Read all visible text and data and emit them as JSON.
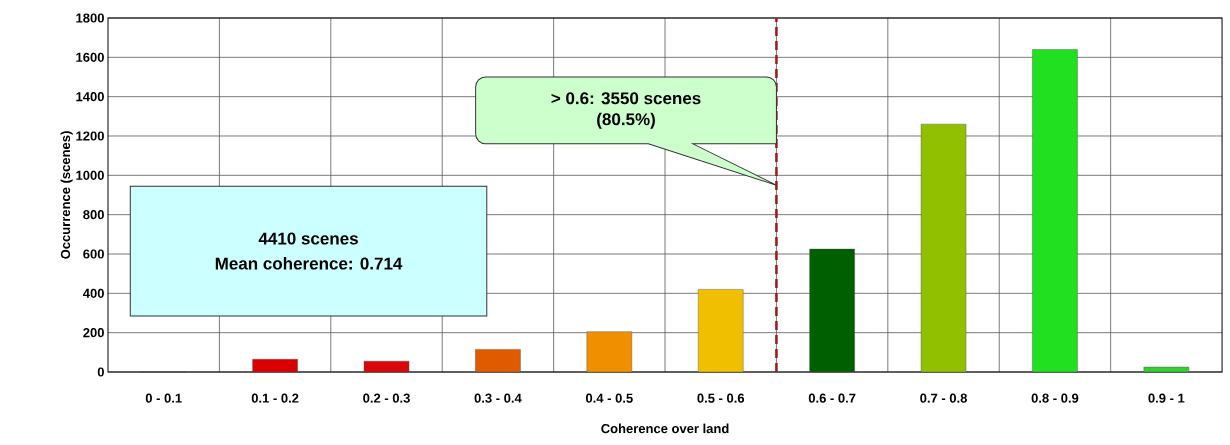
{
  "chart_data": {
    "type": "bar",
    "xlabel": "Coherence over land",
    "ylabel": "Occurrence (scenes)",
    "categories": [
      "0 - 0.1",
      "0.1 - 0.2",
      "0.2 - 0.3",
      "0.3 - 0.4",
      "0.4 - 0.5",
      "0.5 - 0.6",
      "0.6 - 0.7",
      "0.7 - 0.8",
      "0.8 - 0.9",
      "0.9 - 1"
    ],
    "values": [
      0,
      65,
      55,
      115,
      205,
      420,
      625,
      1260,
      1640,
      25
    ],
    "colors": [
      "#e00000",
      "#d80000",
      "#d80808",
      "#e05a00",
      "#f09000",
      "#f0c000",
      "#006000",
      "#90c000",
      "#20e020",
      "#30d030"
    ],
    "ylim": [
      0,
      1800
    ],
    "yticks": [
      0,
      200,
      400,
      600,
      800,
      1000,
      1200,
      1400,
      1600,
      1800
    ],
    "grid": true,
    "ref_lines": [
      {
        "axis": "x",
        "value": "0.6 - 0.7",
        "color": "#a01818",
        "line_style": "dashed"
      }
    ],
    "annotations": [
      "> 0.6: 3550 scenes",
      "(80.5%)",
      "4410 scenes",
      "Mean coherence: 0.714"
    ]
  }
}
